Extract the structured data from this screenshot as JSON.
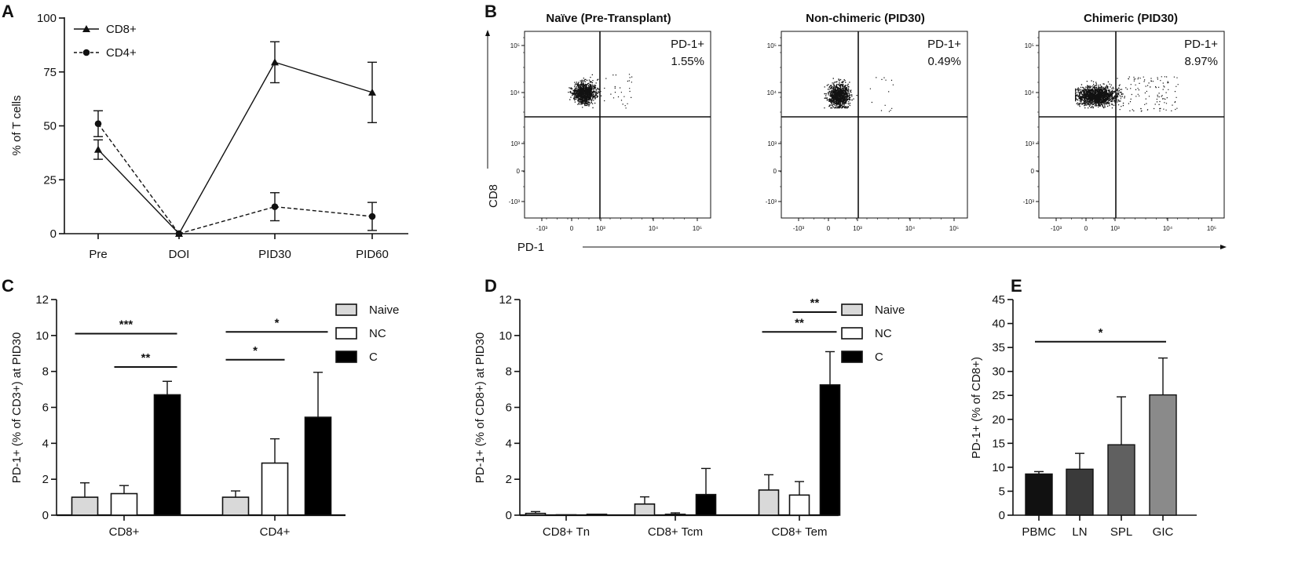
{
  "panels": {
    "A": "A",
    "B": "B",
    "C": "C",
    "D": "D",
    "E": "E"
  },
  "chart_data": [
    {
      "id": "A",
      "type": "line",
      "categories": [
        "Pre",
        "DOI",
        "PID30",
        "PID60"
      ],
      "ylabel": "% of T cells",
      "ylim": [
        0,
        100
      ],
      "yticks": [
        "0",
        "25",
        "50",
        "75",
        "100"
      ],
      "series": [
        {
          "name": "CD8+",
          "marker": "triangle",
          "dash": "solid",
          "values": [
            39,
            0,
            79.5,
            65.5
          ],
          "err": [
            4.5,
            0,
            9.5,
            14
          ]
        },
        {
          "name": "CD4+",
          "marker": "circle",
          "dash": "dashed",
          "values": [
            51,
            0,
            12.5,
            8
          ],
          "err": [
            6,
            0,
            6.5,
            6.5
          ]
        }
      ]
    },
    {
      "id": "B",
      "type": "scatter",
      "xlabel": "PD-1",
      "ylabel": "CD8",
      "x_ticks": [
        "-10³",
        "0",
        "10³",
        "10⁴",
        "10⁵"
      ],
      "y_ticks": [
        "10⁵",
        "10⁴",
        "10³",
        "0",
        "-10³"
      ],
      "plots": [
        {
          "title": "Naïve (Pre-Transplant)",
          "label": "PD-1+",
          "value": "1.55%"
        },
        {
          "title": "Non-chimeric (PID30)",
          "label": "PD-1+",
          "value": "0.49%"
        },
        {
          "title": "Chimeric (PID30)",
          "label": "PD-1+",
          "value": "8.97%"
        }
      ]
    },
    {
      "id": "C",
      "type": "bar",
      "categories": [
        "CD8+",
        "CD4+"
      ],
      "ylabel": "PD-1+ (% of CD3+) at PID30",
      "ylim": [
        0,
        12
      ],
      "yticks": [
        "0",
        "2",
        "4",
        "6",
        "8",
        "10",
        "12"
      ],
      "series": [
        {
          "name": "Naive",
          "color": "#d9d9d9",
          "values": [
            1.0,
            1.0
          ],
          "err": [
            0.8,
            0.35
          ]
        },
        {
          "name": "NC",
          "color": "#ffffff",
          "values": [
            1.2,
            2.9
          ],
          "err": [
            0.45,
            1.35
          ]
        },
        {
          "name": "C",
          "color": "#000000",
          "values": [
            6.7,
            5.45
          ],
          "err": [
            0.75,
            2.5
          ]
        }
      ],
      "significance": [
        {
          "group": 0,
          "from": 0,
          "to": 2,
          "y": 10.1,
          "label": "***"
        },
        {
          "group": 0,
          "from": 1,
          "to": 2,
          "y": 8.25,
          "label": "**"
        },
        {
          "group": 1,
          "from": 0,
          "to": 2,
          "y": 10.2,
          "label": "*"
        },
        {
          "group": 1,
          "from": 0,
          "to": 1,
          "y": 8.65,
          "label": "*"
        }
      ]
    },
    {
      "id": "D",
      "type": "bar",
      "categories": [
        "CD8+ Tn",
        "CD8+ Tcm",
        "CD8+ Tem"
      ],
      "ylabel": "PD-1+ (% of CD8+) at PID30",
      "ylim": [
        0,
        12
      ],
      "yticks": [
        "0",
        "2",
        "4",
        "6",
        "8",
        "10",
        "12"
      ],
      "series": [
        {
          "name": "Naive",
          "color": "#d9d9d9",
          "values": [
            0.1,
            0.62,
            1.4
          ],
          "err": [
            0.1,
            0.4,
            0.85
          ]
        },
        {
          "name": "NC",
          "color": "#ffffff",
          "values": [
            0.02,
            0.05,
            1.12
          ],
          "err": [
            0.0,
            0.08,
            0.75
          ]
        },
        {
          "name": "C",
          "color": "#000000",
          "values": [
            0.05,
            1.15,
            7.25
          ],
          "err": [
            0.0,
            1.45,
            1.85
          ]
        }
      ],
      "significance": [
        {
          "group": 2,
          "from": 0,
          "to": 2,
          "y": 10.2,
          "label": "**"
        },
        {
          "group": 2,
          "from": 1,
          "to": 2,
          "y": 11.3,
          "label": "**"
        }
      ]
    },
    {
      "id": "E",
      "type": "bar",
      "categories": [
        "PBMC",
        "LN",
        "SPL",
        "GIC"
      ],
      "ylabel": "PD-1+ (% of CD8+)",
      "ylim": [
        0,
        45
      ],
      "yticks": [
        "0",
        "5",
        "10",
        "15",
        "20",
        "25",
        "30",
        "35",
        "40",
        "45"
      ],
      "colors": [
        "#111111",
        "#3a3a3a",
        "#606060",
        "#8a8a8a"
      ],
      "values": [
        8.6,
        9.6,
        14.7,
        25.1
      ],
      "err": [
        0.5,
        3.3,
        10,
        7.7
      ],
      "significance": [
        {
          "from": 0,
          "to": 3,
          "y": 36.2,
          "label": "*"
        }
      ]
    }
  ]
}
